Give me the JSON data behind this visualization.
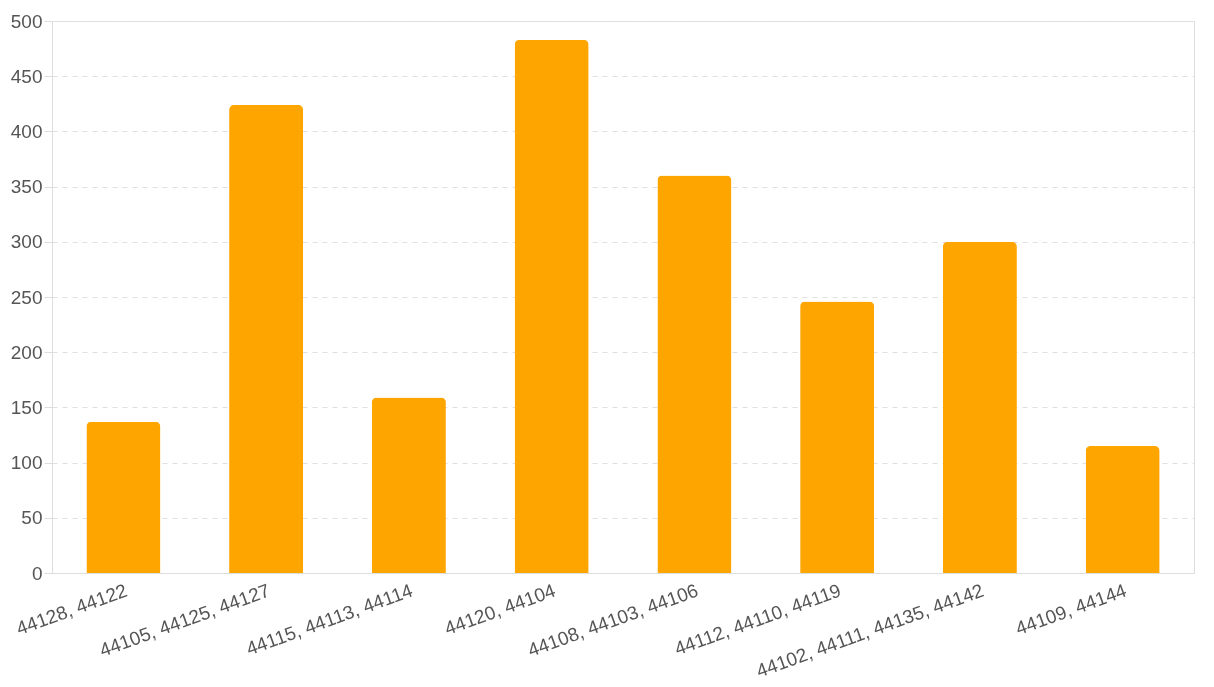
{
  "chart_data": {
    "type": "bar",
    "categories": [
      "44128, 44122",
      "44105, 44125, 44127",
      "44115, 44113, 44114",
      "44120, 44104",
      "44108, 44103, 44106",
      "44112, 44110, 44119",
      "44102, 44111, 44135, 44142",
      "44109, 44144"
    ],
    "values": [
      137,
      424,
      159,
      483,
      360,
      246,
      300,
      115
    ],
    "color": "#ffa500",
    "ylim": [
      0,
      500
    ],
    "yticks": [
      0,
      50,
      100,
      150,
      200,
      250,
      300,
      350,
      400,
      450,
      500
    ],
    "grid": "y"
  }
}
